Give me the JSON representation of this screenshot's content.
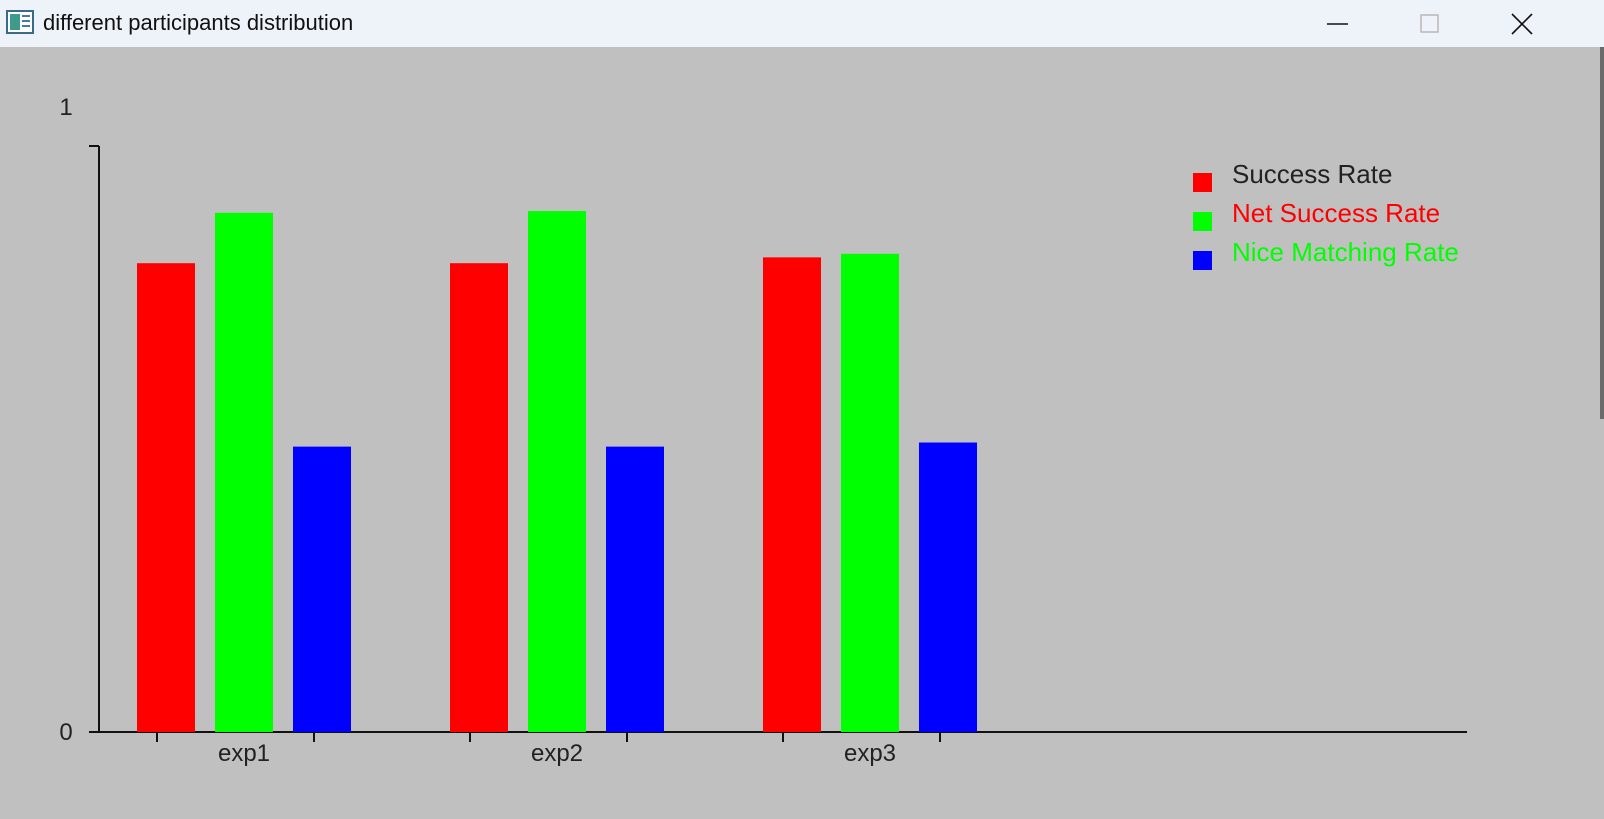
{
  "window": {
    "title": "different participants distribution",
    "icons": {
      "app": "app-window-icon",
      "minimize": "minimize-icon",
      "maximize": "maximize-icon",
      "close": "close-icon"
    }
  },
  "chart_data": {
    "type": "bar",
    "categories": [
      "exp1",
      "exp2",
      "exp3"
    ],
    "series": [
      {
        "name": "Success Rate",
        "color": "#ff0000",
        "label_color": "#222222",
        "values": [
          0.8,
          0.8,
          0.81
        ]
      },
      {
        "name": "Net Success Rate",
        "color": "#00ff00",
        "label_color": "#ff0000",
        "values": [
          0.886,
          0.889,
          0.816
        ]
      },
      {
        "name": "Nice Matching Rate",
        "color": "#0000ff",
        "label_color": "#00ff00",
        "values": [
          0.487,
          0.487,
          0.494
        ]
      }
    ],
    "ylim": [
      0,
      1
    ],
    "ytick_labels": [
      "0",
      "1"
    ],
    "title": "",
    "xlabel": "",
    "ylabel": "",
    "grid": false,
    "legend_position": "top-right",
    "background": "#c0c0c0"
  }
}
